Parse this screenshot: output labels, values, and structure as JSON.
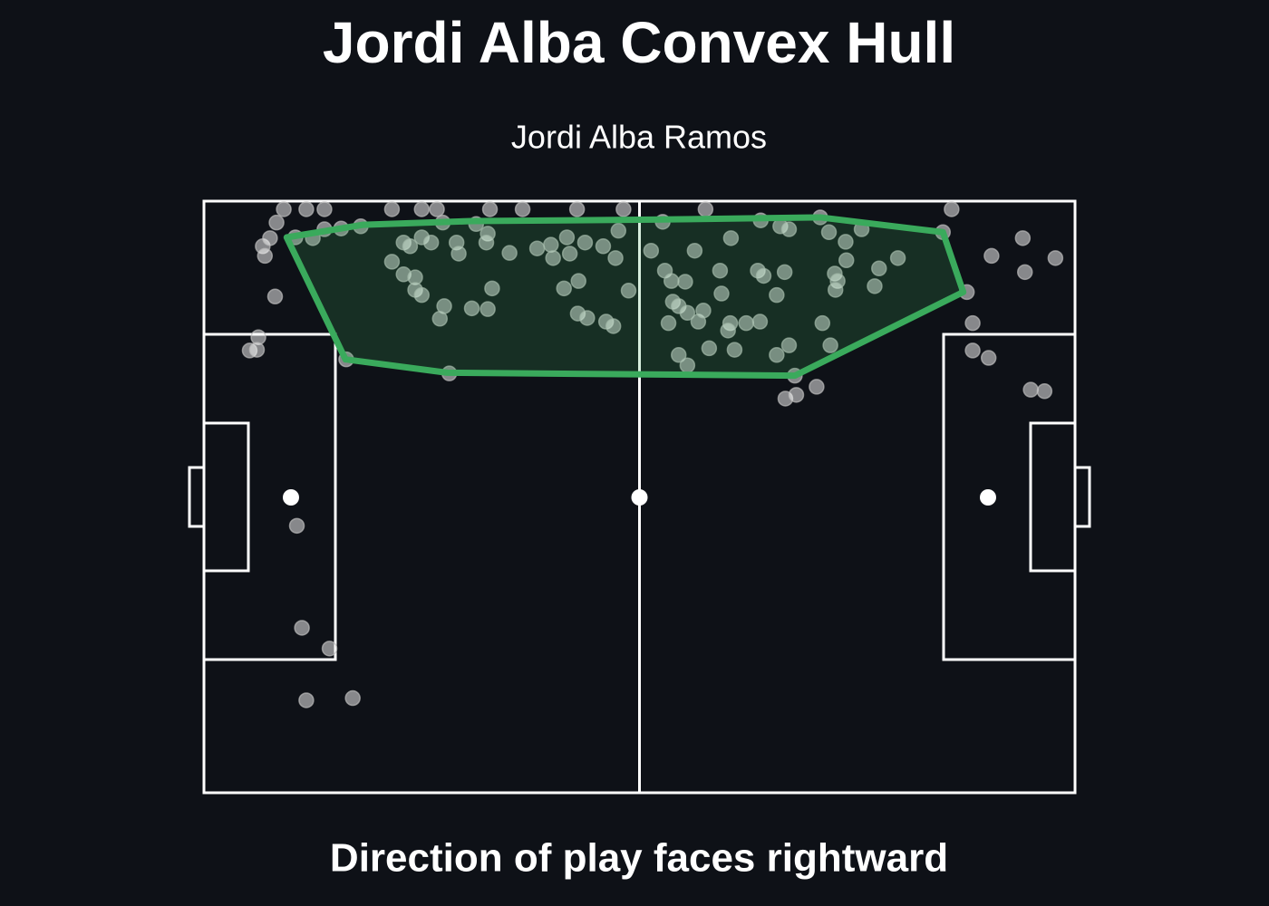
{
  "chart_data": {
    "type": "scatter",
    "title": "Jordi Alba Convex Hull",
    "subtitle": "Jordi Alba Ramos",
    "footnote": "Direction of play faces rightward",
    "xlim": [
      0,
      120
    ],
    "ylim": [
      0,
      80
    ],
    "invert_y": true,
    "color": "#ffffff",
    "x": [
      11.0,
      14.1,
      16.6,
      10.0,
      8.1,
      8.4,
      9.1,
      12.6,
      15.0,
      16.6,
      18.9,
      21.6,
      9.8,
      7.5,
      6.3,
      7.3,
      19.6,
      33.8,
      25.9,
      30.0,
      32.1,
      39.4,
      43.9,
      51.4,
      57.8,
      69.1,
      103.0,
      32.9,
      37.5,
      39.1,
      27.5,
      28.4,
      30.0,
      31.3,
      34.8,
      35.1,
      38.9,
      42.1,
      45.9,
      47.8,
      48.1,
      50.0,
      50.4,
      52.5,
      55.0,
      57.1,
      56.7,
      25.9,
      27.5,
      29.1,
      29.1,
      30.0,
      33.1,
      32.5,
      36.9,
      39.1,
      39.7,
      49.6,
      51.6,
      51.5,
      52.8,
      55.4,
      56.4,
      58.5,
      61.6,
      63.2,
      67.6,
      72.6,
      76.7,
      79.4,
      80.6,
      84.9,
      86.1,
      88.4,
      90.6,
      88.5,
      93.0,
      95.6,
      101.8,
      108.5,
      112.8,
      113.1,
      117.3,
      105.1,
      105.9,
      105.9,
      108.1,
      113.9,
      115.8,
      63.5,
      64.4,
      66.3,
      64.6,
      65.4,
      66.6,
      68.1,
      68.8,
      71.3,
      71.1,
      64.0,
      65.4,
      66.6,
      69.6,
      73.1,
      72.5,
      72.2,
      74.7,
      76.6,
      76.3,
      77.1,
      80.0,
      78.9,
      85.2,
      86.3,
      80.6,
      78.9,
      81.4,
      80.1,
      81.6,
      84.4,
      86.9,
      87.3,
      87.0,
      92.4,
      12.8,
      13.5,
      17.3,
      14.1,
      20.5
    ],
    "values": [
      1.1,
      1.1,
      1.1,
      2.9,
      6.1,
      7.4,
      5.0,
      4.9,
      5.0,
      3.8,
      3.7,
      3.4,
      12.9,
      18.4,
      20.2,
      20.1,
      21.4,
      23.3,
      1.1,
      1.1,
      1.1,
      1.1,
      1.1,
      1.1,
      1.1,
      1.1,
      1.1,
      2.9,
      3.1,
      4.4,
      5.6,
      6.1,
      4.9,
      5.6,
      5.6,
      7.1,
      5.6,
      7.0,
      6.4,
      5.9,
      7.7,
      4.9,
      7.1,
      5.6,
      6.1,
      4.0,
      7.7,
      8.2,
      9.9,
      10.3,
      12.0,
      12.7,
      14.2,
      15.9,
      14.5,
      14.6,
      11.8,
      11.8,
      10.8,
      15.2,
      15.8,
      16.3,
      16.9,
      12.1,
      6.7,
      2.8,
      6.7,
      5.0,
      2.6,
      3.4,
      3.8,
      2.2,
      4.2,
      5.5,
      3.8,
      8.0,
      9.1,
      7.7,
      4.2,
      7.4,
      5.0,
      9.6,
      7.7,
      12.3,
      16.5,
      20.2,
      21.2,
      25.5,
      25.7,
      9.4,
      10.8,
      10.9,
      13.6,
      14.2,
      15.1,
      16.3,
      14.8,
      12.5,
      9.4,
      16.5,
      20.8,
      22.2,
      19.9,
      20.1,
      16.5,
      17.5,
      16.5,
      16.3,
      9.4,
      10.1,
      9.6,
      12.7,
      16.5,
      19.5,
      19.5,
      20.8,
      23.6,
      26.7,
      26.2,
      25.1,
      9.8,
      10.8,
      12.0,
      11.5,
      43.9,
      57.7,
      60.5,
      67.5,
      67.2
    ],
    "hull": {
      "color": "#3aaa5c",
      "x": [
        11.4,
        19.5,
        33.5,
        81.4,
        104.6,
        101.8,
        84.9,
        61.8,
        36.8,
        21.9
      ],
      "y": [
        4.9,
        21.4,
        23.2,
        23.6,
        12.3,
        4.2,
        2.2,
        2.5,
        2.7,
        3.2
      ]
    }
  }
}
